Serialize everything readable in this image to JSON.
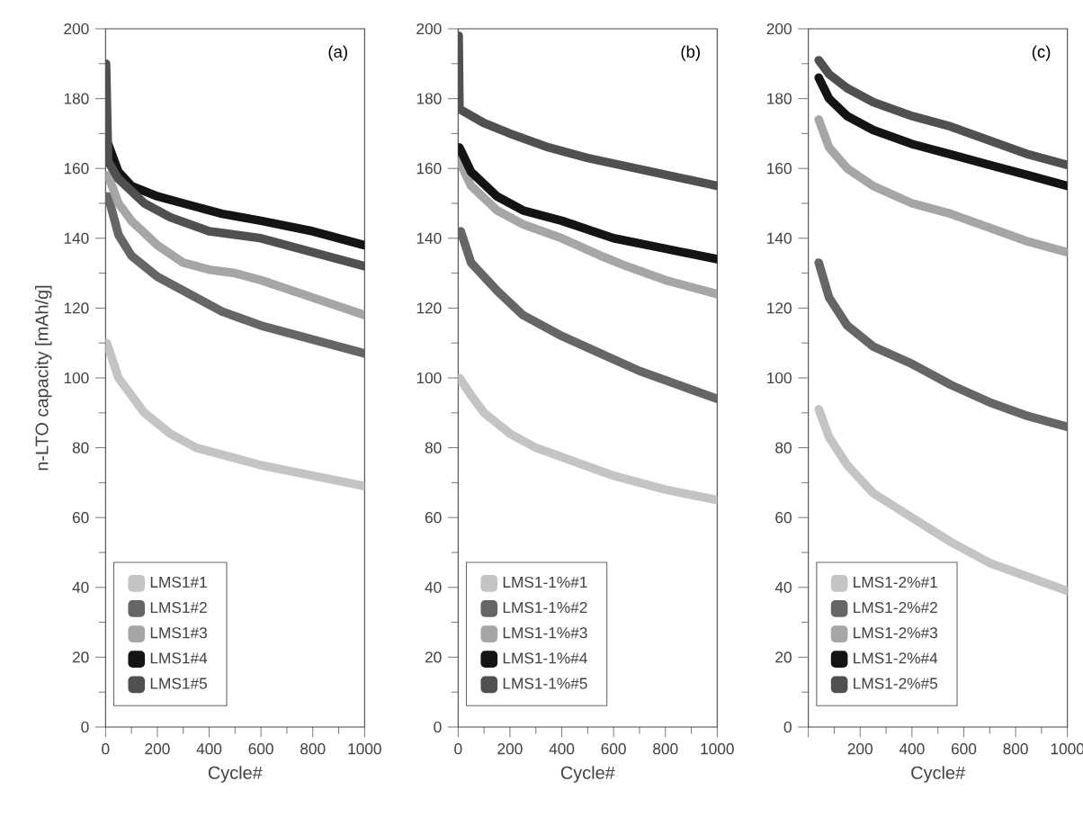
{
  "chart_data": [
    {
      "type": "line",
      "xlabel": "Cycle#",
      "ylabel": "n-LTO capacity [mAh/g]",
      "annotations": [
        "(a)"
      ],
      "legend": "bottom left",
      "xlim": [
        0,
        1000
      ],
      "ylim": [
        0,
        200
      ],
      "xticks": [
        0,
        200,
        400,
        600,
        800,
        1000
      ],
      "yticks": [
        0,
        20,
        40,
        60,
        80,
        100,
        120,
        140,
        160,
        180,
        200
      ],
      "series": [
        {
          "name": "LMS1#1",
          "color": "#c4c4c4",
          "x": [
            5,
            50,
            150,
            250,
            350,
            450,
            600,
            800,
            1000
          ],
          "values": [
            110,
            100,
            90,
            84,
            80,
            78,
            75,
            72,
            69
          ]
        },
        {
          "name": "LMS1#2",
          "color": "#666666",
          "x": [
            10,
            50,
            100,
            200,
            300,
            450,
            600,
            800,
            1000
          ],
          "values": [
            152,
            141,
            135,
            129,
            125,
            119,
            115,
            111,
            107
          ]
        },
        {
          "name": "LMS1#3",
          "color": "#a6a6a6",
          "x": [
            10,
            50,
            100,
            200,
            300,
            400,
            500,
            600,
            800,
            1000
          ],
          "values": [
            158,
            150,
            145,
            138,
            133,
            131,
            130,
            128,
            123,
            118
          ]
        },
        {
          "name": "LMS1#4",
          "color": "#141414",
          "x": [
            10,
            50,
            100,
            200,
            300,
            450,
            600,
            800,
            1000
          ],
          "values": [
            167,
            159,
            155,
            152,
            150,
            147,
            145,
            142,
            138
          ]
        },
        {
          "name": "LMS1#5",
          "color": "#505050",
          "x": [
            2,
            10,
            50,
            150,
            250,
            400,
            600,
            800,
            1000
          ],
          "values": [
            190,
            162,
            157,
            150,
            146,
            142,
            140,
            136,
            132
          ]
        }
      ]
    },
    {
      "type": "line",
      "xlabel": "Cycle#",
      "annotations": [
        "(b)"
      ],
      "legend": "bottom left",
      "xlim": [
        0,
        1000
      ],
      "ylim": [
        0,
        200
      ],
      "xticks": [
        0,
        200,
        400,
        600,
        800,
        1000
      ],
      "yticks": [
        0,
        20,
        40,
        60,
        80,
        100,
        120,
        140,
        160,
        180,
        200
      ],
      "series": [
        {
          "name": "LMS1-1%#1",
          "color": "#c4c4c4",
          "x": [
            5,
            50,
            100,
            200,
            300,
            450,
            600,
            800,
            1000
          ],
          "values": [
            100,
            95,
            90,
            84,
            80,
            76,
            72,
            68,
            65
          ]
        },
        {
          "name": "LMS1-1%#2",
          "color": "#666666",
          "x": [
            10,
            50,
            150,
            250,
            400,
            550,
            700,
            850,
            1000
          ],
          "values": [
            142,
            133,
            125,
            118,
            112,
            107,
            102,
            98,
            94
          ]
        },
        {
          "name": "LMS1-1%#3",
          "color": "#a6a6a6",
          "x": [
            5,
            50,
            150,
            250,
            400,
            550,
            650,
            800,
            1000
          ],
          "values": [
            162,
            155,
            148,
            144,
            140,
            135,
            132,
            128,
            124
          ]
        },
        {
          "name": "LMS1-1%#4",
          "color": "#141414",
          "x": [
            5,
            50,
            150,
            250,
            400,
            600,
            800,
            1000
          ],
          "values": [
            166,
            159,
            152,
            148,
            145,
            140,
            137,
            134
          ]
        },
        {
          "name": "LMS1-1%#5",
          "color": "#505050",
          "x": [
            2,
            5,
            100,
            200,
            350,
            500,
            750,
            1000
          ],
          "values": [
            198,
            177,
            173,
            170,
            166,
            163,
            159,
            155
          ]
        }
      ]
    },
    {
      "type": "line",
      "xlabel": "Cycle#",
      "annotations": [
        "(c)"
      ],
      "legend": "bottom left",
      "xlim": [
        0,
        1000
      ],
      "ylim": [
        0,
        200
      ],
      "xticks": [
        {
          "value": 0,
          "label": null
        },
        200,
        400,
        600,
        800,
        1000
      ],
      "yticks": [
        0,
        20,
        40,
        60,
        80,
        100,
        120,
        140,
        160,
        180,
        200
      ],
      "series": [
        {
          "name": "LMS1-2%#1",
          "color": "#c4c4c4",
          "x": [
            40,
            80,
            150,
            250,
            400,
            550,
            700,
            850,
            1000
          ],
          "values": [
            91,
            83,
            75,
            67,
            60,
            53,
            47,
            43,
            39
          ]
        },
        {
          "name": "LMS1-2%#2",
          "color": "#666666",
          "x": [
            40,
            80,
            150,
            250,
            400,
            550,
            700,
            850,
            1000
          ],
          "values": [
            133,
            123,
            115,
            109,
            104,
            98,
            93,
            89,
            86
          ]
        },
        {
          "name": "LMS1-2%#3",
          "color": "#a6a6a6",
          "x": [
            40,
            80,
            150,
            250,
            400,
            550,
            700,
            850,
            1000
          ],
          "values": [
            174,
            166,
            160,
            155,
            150,
            147,
            143,
            139,
            136
          ]
        },
        {
          "name": "LMS1-2%#4",
          "color": "#141414",
          "x": [
            40,
            80,
            150,
            250,
            400,
            550,
            700,
            850,
            1000
          ],
          "values": [
            186,
            180,
            175,
            171,
            167,
            164,
            161,
            158,
            155
          ]
        },
        {
          "name": "LMS1-2%#5",
          "color": "#505050",
          "x": [
            40,
            80,
            150,
            250,
            400,
            550,
            700,
            850,
            1000
          ],
          "values": [
            191,
            187,
            183,
            179,
            175,
            172,
            168,
            164,
            161
          ]
        }
      ]
    }
  ]
}
